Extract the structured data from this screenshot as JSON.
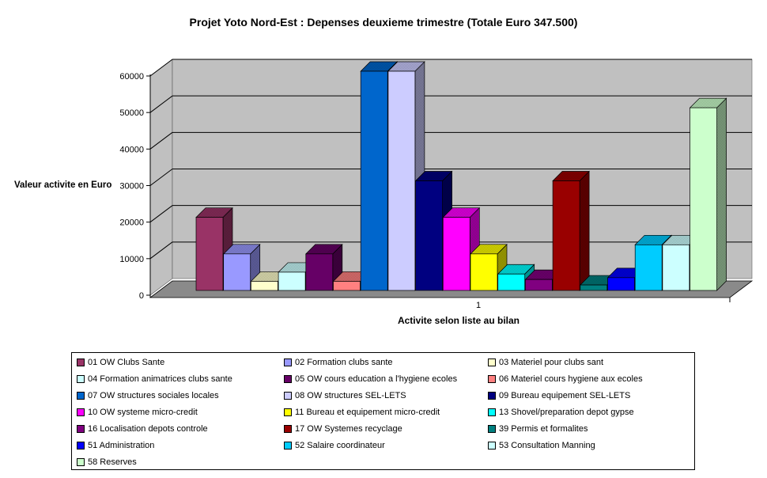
{
  "chart_data": {
    "type": "bar",
    "projection": "3d-column",
    "title": "Projet Yoto Nord-Est : Depenses deuxieme trimestre (Totale Euro 347.500)",
    "xlabel": "Activite selon liste au bilan",
    "ylabel": "Valeur activite en Euro",
    "x_tick_label": "1",
    "ylim": [
      0,
      60000
    ],
    "y_ticks": [
      0,
      10000,
      20000,
      30000,
      40000,
      50000,
      60000
    ],
    "grid": "on",
    "legend_position": "bottom",
    "wall_color": "#C0C0C0",
    "floor_color": "#8A8A8A",
    "gridline_color": "#000000",
    "series": [
      {
        "name": "01 OW Clubs Sante",
        "value": 20000,
        "color": "#993366"
      },
      {
        "name": "02 Formation clubs sante",
        "value": 10000,
        "color": "#9999FF"
      },
      {
        "name": "03 Materiel pour clubs sant",
        "value": 2500,
        "color": "#FFFFCC"
      },
      {
        "name": "04 Formation animatrices clubs sante",
        "value": 5000,
        "color": "#CCFFFF"
      },
      {
        "name": "05 OW cours education a l'hygiene ecoles",
        "value": 10000,
        "color": "#660066"
      },
      {
        "name": "06 Materiel cours hygiene aux ecoles",
        "value": 2500,
        "color": "#FF8080"
      },
      {
        "name": "07 OW structures sociales locales",
        "value": 60000,
        "color": "#0066CC"
      },
      {
        "name": "08 OW structures SEL-LETS",
        "value": 60000,
        "color": "#CCCCFF"
      },
      {
        "name": "09 Bureau equipement SEL-LETS",
        "value": 30000,
        "color": "#000080"
      },
      {
        "name": "10 OW systeme micro-credit",
        "value": 20000,
        "color": "#FF00FF"
      },
      {
        "name": "11 Bureau et equipement micro-credit",
        "value": 10000,
        "color": "#FFFF00"
      },
      {
        "name": "13 Shovel/preparation depot gypse",
        "value": 4500,
        "color": "#00FFFF"
      },
      {
        "name": "16 Localisation depots controle",
        "value": 3000,
        "color": "#800080"
      },
      {
        "name": "17 OW Systemes recyclage",
        "value": 30000,
        "color": "#990000"
      },
      {
        "name": "39 Permis et formalites",
        "value": 1500,
        "color": "#008080"
      },
      {
        "name": "51 Administration",
        "value": 3500,
        "color": "#0000FF"
      },
      {
        "name": "52 Salaire coordinateur",
        "value": 12500,
        "color": "#00CCFF"
      },
      {
        "name": "53 Consultation Manning",
        "value": 12500,
        "color": "#CCFFFF"
      },
      {
        "name": "58 Reserves",
        "value": 50000,
        "color": "#CCFFCC"
      }
    ],
    "total_label": "Totale Euro 347.500"
  }
}
